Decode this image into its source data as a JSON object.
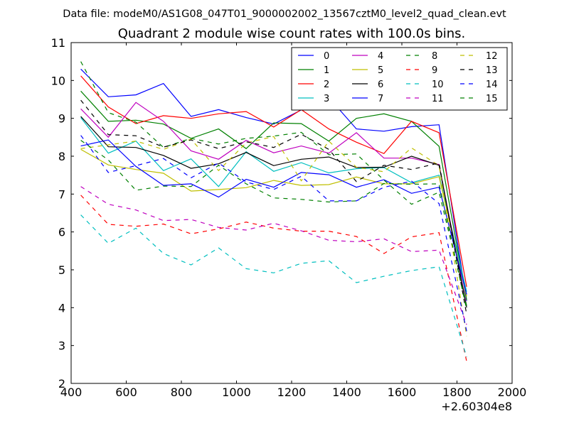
{
  "chart_data": {
    "type": "line",
    "suptitle": "Data file: modeM0/AS1G08_047T01_9000002002_13567cztM0_level2_quad_clean.evt",
    "title": "Quadrant 2 module wise count rates with 100.0s bins.",
    "xlabel": "",
    "ylabel": "",
    "x_offset_label": "+2.60304e8",
    "xlim": [
      400,
      2000
    ],
    "ylim": [
      2,
      11
    ],
    "x_ticks": [
      400,
      600,
      800,
      1000,
      1200,
      1400,
      1600,
      1800,
      2000
    ],
    "y_ticks": [
      2,
      3,
      4,
      5,
      6,
      7,
      8,
      9,
      10,
      11
    ],
    "x_tick_labels": [
      "400",
      "600",
      "800",
      "1000",
      "1200",
      "1400",
      "1600",
      "1800",
      "2000"
    ],
    "y_tick_labels": [
      "2",
      "3",
      "4",
      "5",
      "6",
      "7",
      "8",
      "9",
      "10",
      "11"
    ],
    "grid": false,
    "legend_location": "top-right",
    "x": [
      435,
      535,
      635,
      735,
      835,
      935,
      1035,
      1135,
      1235,
      1335,
      1435,
      1535,
      1635,
      1735,
      1835
    ],
    "series": [
      {
        "name": "0",
        "color": "#0000ff",
        "style": "solid",
        "values": [
          10.3,
          9.57,
          9.62,
          9.92,
          9.05,
          9.23,
          9.02,
          8.85,
          9.22,
          9.55,
          8.72,
          8.66,
          8.78,
          8.83,
          4.18
        ]
      },
      {
        "name": "1",
        "color": "#008000",
        "style": "solid",
        "values": [
          9.72,
          8.92,
          8.95,
          8.85,
          8.47,
          8.72,
          8.2,
          8.88,
          8.86,
          8.4,
          9.0,
          9.12,
          8.92,
          8.26,
          4.2
        ]
      },
      {
        "name": "2",
        "color": "#ff0000",
        "style": "solid",
        "values": [
          10.12,
          9.3,
          8.86,
          9.07,
          9.0,
          9.12,
          9.18,
          8.77,
          9.23,
          8.72,
          8.37,
          8.07,
          8.92,
          8.62,
          4.55
        ]
      },
      {
        "name": "3",
        "color": "#00bfbf",
        "style": "solid",
        "values": [
          9.02,
          8.08,
          8.4,
          7.62,
          7.93,
          7.2,
          8.12,
          7.6,
          7.83,
          7.56,
          7.67,
          7.7,
          7.3,
          7.5,
          4.42
        ]
      },
      {
        "name": "4",
        "color": "#bf00bf",
        "style": "solid",
        "values": [
          9.25,
          8.5,
          9.42,
          8.92,
          8.14,
          7.92,
          8.42,
          8.09,
          8.27,
          8.08,
          8.62,
          7.95,
          7.95,
          7.78,
          4.05
        ]
      },
      {
        "name": "5",
        "color": "#bfbf00",
        "style": "solid",
        "values": [
          8.18,
          7.77,
          7.65,
          7.55,
          7.08,
          7.12,
          7.17,
          7.36,
          7.23,
          7.25,
          7.45,
          7.27,
          7.27,
          7.46,
          4.3
        ]
      },
      {
        "name": "6",
        "color": "#000000",
        "style": "solid",
        "values": [
          9.05,
          8.25,
          8.23,
          8.02,
          7.68,
          7.8,
          8.1,
          7.75,
          7.92,
          7.98,
          7.7,
          7.71,
          8.0,
          7.76,
          4.0
        ]
      },
      {
        "name": "7",
        "color": "#0000ff",
        "style": "solid",
        "values": [
          8.27,
          8.43,
          7.73,
          7.23,
          7.27,
          6.92,
          7.39,
          7.18,
          7.57,
          7.51,
          7.18,
          7.38,
          7.02,
          7.18,
          4.35
        ]
      },
      {
        "name": "8",
        "color": "#008000",
        "style": "dashed",
        "values": [
          10.5,
          9.15,
          8.9,
          8.23,
          8.47,
          8.32,
          8.47,
          8.53,
          8.63,
          8.04,
          8.06,
          7.37,
          6.73,
          7.05,
          4.05
        ]
      },
      {
        "name": "9",
        "color": "#ff0000",
        "style": "dashed",
        "values": [
          6.97,
          6.2,
          6.15,
          6.21,
          5.95,
          6.08,
          6.26,
          6.1,
          6.02,
          6.02,
          5.88,
          5.43,
          5.87,
          5.98,
          2.58
        ]
      },
      {
        "name": "10",
        "color": "#00bfbf",
        "style": "dashed",
        "values": [
          6.45,
          5.7,
          6.1,
          5.43,
          5.13,
          5.58,
          5.03,
          4.92,
          5.17,
          5.24,
          4.66,
          4.83,
          4.98,
          5.08,
          2.7
        ]
      },
      {
        "name": "11",
        "color": "#bf00bf",
        "style": "dashed",
        "values": [
          7.2,
          6.73,
          6.58,
          6.3,
          6.33,
          6.12,
          6.05,
          6.23,
          6.03,
          5.78,
          5.74,
          5.82,
          5.48,
          5.52,
          3.55
        ]
      },
      {
        "name": "12",
        "color": "#bfbf00",
        "style": "dashed",
        "values": [
          8.2,
          8.3,
          8.4,
          8.18,
          8.45,
          7.62,
          8.35,
          8.52,
          7.35,
          8.4,
          7.71,
          7.59,
          8.22,
          7.75,
          3.25
        ]
      },
      {
        "name": "13",
        "color": "#000000",
        "style": "dashed",
        "values": [
          9.48,
          8.57,
          8.54,
          8.24,
          8.43,
          8.2,
          8.38,
          8.23,
          8.58,
          8.18,
          7.33,
          7.76,
          7.65,
          7.82,
          3.82
        ]
      },
      {
        "name": "14",
        "color": "#0000ff",
        "style": "dashed",
        "values": [
          8.55,
          7.57,
          7.75,
          7.94,
          7.43,
          7.82,
          7.32,
          7.12,
          7.47,
          6.82,
          6.82,
          7.18,
          7.34,
          6.75,
          3.38
        ]
      },
      {
        "name": "15",
        "color": "#008000",
        "style": "dashed",
        "values": [
          8.42,
          7.9,
          7.1,
          7.21,
          7.2,
          7.76,
          7.27,
          6.9,
          6.86,
          6.79,
          6.82,
          7.28,
          7.26,
          7.27,
          3.95
        ]
      }
    ]
  }
}
